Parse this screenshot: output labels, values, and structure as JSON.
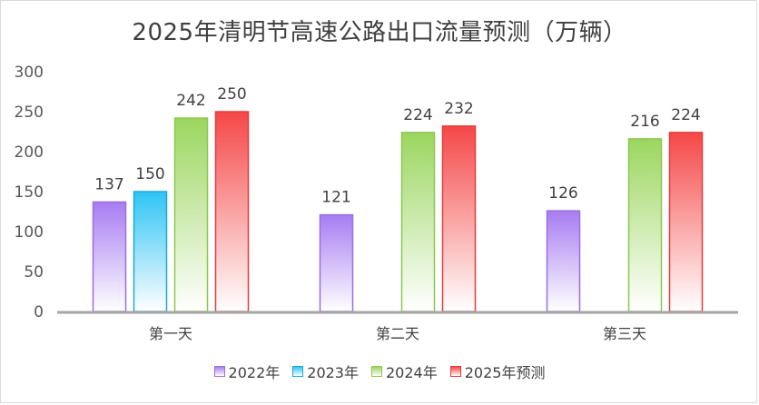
{
  "chart_data": {
    "type": "bar",
    "title": "2025年清明节高速公路出口流量预测（万辆）",
    "categories": [
      "第一天",
      "第二天",
      "第三天"
    ],
    "ylim": [
      0,
      300
    ],
    "yticks": [
      "0",
      "50",
      "100",
      "150",
      "200",
      "250",
      "300"
    ],
    "grid": false,
    "legend_position": "bottom",
    "series": [
      {
        "name": "2022年",
        "values": [
          137,
          121,
          126
        ],
        "color_top": "#a77cf2",
        "color_bottom": "#ffffff",
        "edge": "#9b6fe0"
      },
      {
        "name": "2023年",
        "values": [
          150,
          null,
          null
        ],
        "color_top": "#2ec3f5",
        "color_bottom": "#ffffff",
        "edge": "#1aa9d8"
      },
      {
        "name": "2024年",
        "values": [
          242,
          224,
          216
        ],
        "color_top": "#9bd65f",
        "color_bottom": "#ffffff",
        "edge": "#8cc84e"
      },
      {
        "name": "2025年预测",
        "values": [
          250,
          232,
          224
        ],
        "color_top": "#f54747",
        "color_bottom": "#ffffff",
        "edge": "#e83a3a"
      }
    ]
  }
}
